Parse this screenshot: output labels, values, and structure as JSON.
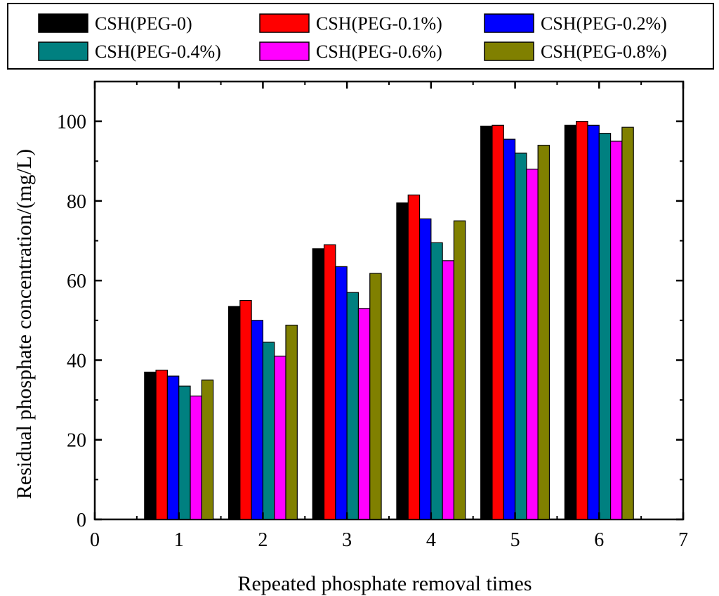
{
  "chart_data": {
    "type": "bar",
    "xlabel": "Repeated phosphate removal times",
    "ylabel": "Residual phosphate concentration/(mg/L)",
    "xlim": [
      0,
      7
    ],
    "ylim": [
      0,
      110
    ],
    "x_ticks": [
      "0",
      "1",
      "2",
      "3",
      "4",
      "5",
      "6",
      "7"
    ],
    "y_ticks": [
      "0",
      "20",
      "40",
      "60",
      "80",
      "100"
    ],
    "categories": [
      "1",
      "2",
      "3",
      "4",
      "5",
      "6"
    ],
    "legend_position": "top",
    "grid": false,
    "series": [
      {
        "name": "CSH(PEG-0)",
        "color": "#000000",
        "values": [
          37,
          53.5,
          68,
          79.5,
          98.8,
          99
        ]
      },
      {
        "name": "CSH(PEG-0.1%)",
        "color": "#ff0000",
        "values": [
          37.5,
          55,
          69,
          81.5,
          99,
          100
        ]
      },
      {
        "name": "CSH(PEG-0.2%)",
        "color": "#0000ff",
        "values": [
          36,
          50,
          63.5,
          75.5,
          95.5,
          99
        ]
      },
      {
        "name": "CSH(PEG-0.4%)",
        "color": "#008080",
        "values": [
          33.5,
          44.5,
          57,
          69.5,
          92,
          97
        ]
      },
      {
        "name": "CSH(PEG-0.6%)",
        "color": "#ff00ff",
        "values": [
          31,
          41,
          53,
          65,
          88,
          95
        ]
      },
      {
        "name": "CSH(PEG-0.8%)",
        "color": "#808000",
        "values": [
          35,
          48.8,
          61.8,
          75,
          94,
          98.5
        ]
      }
    ]
  }
}
